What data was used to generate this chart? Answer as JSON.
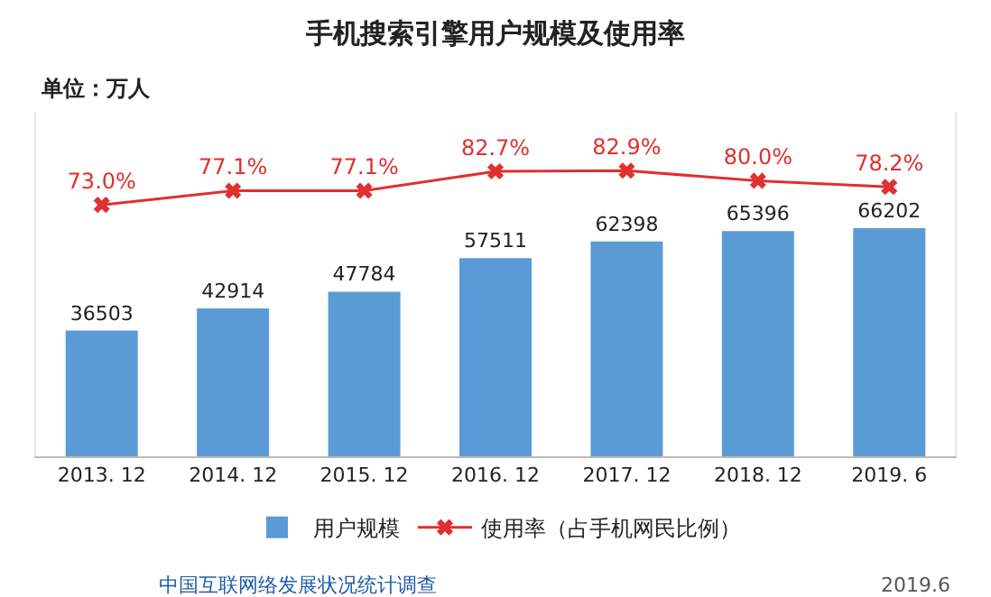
{
  "chart_data": {
    "type": "bar",
    "title": "手机搜索引擎用户规模及使用率",
    "annotations": [
      "单位：万人",
      "中国互联网络发展状况统计调查",
      "2019.6"
    ],
    "categories": [
      "2013. 12",
      "2014. 12",
      "2015. 12",
      "2016. 12",
      "2017. 12",
      "2018. 12",
      "2019. 6"
    ],
    "data_labels": true,
    "legend": "bottom",
    "tick_labels": "x",
    "ylim": [
      0,
      100000
    ],
    "y2lim": [
      0,
      100
    ],
    "series": [
      {
        "name": "用户规模",
        "color": "#5b9bd5",
        "values": [
          36503,
          42914,
          47784,
          57511,
          62398,
          65396,
          66202
        ]
      },
      {
        "name": "使用率（占手机网民比例）",
        "type": "line",
        "axis": "y2",
        "color": "#e0302f",
        "marker": "cross",
        "values": [
          73.0,
          77.1,
          77.1,
          82.7,
          82.9,
          80.0,
          78.2
        ],
        "value_labels": [
          "73.0%",
          "77.1%",
          "77.1%",
          "82.7%",
          "82.9%",
          "80.0%",
          "78.2%"
        ]
      }
    ]
  }
}
